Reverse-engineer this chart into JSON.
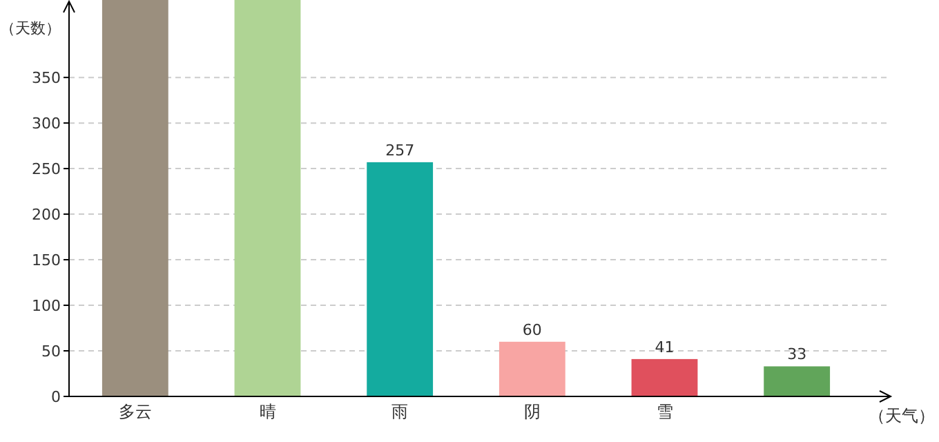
{
  "chart_data": {
    "type": "bar",
    "xlabel": "（天气）",
    "ylabel": "（天数）",
    "categories": [
      "多云",
      "晴",
      "雨",
      "阴",
      "雪",
      null
    ],
    "values": [
      435,
      435,
      257,
      60,
      41,
      33
    ],
    "value_labels": [
      null,
      null,
      "257",
      "60",
      "41",
      "33"
    ],
    "colors": [
      "#9b8f7e",
      "#afd494",
      "#14ab9f",
      "#f8a5a3",
      "#e0505d",
      "#61a55a"
    ],
    "ylim": [
      0,
      435
    ],
    "yticks": [
      0,
      50,
      100,
      150,
      200,
      250,
      300,
      350
    ],
    "grid": "y"
  }
}
